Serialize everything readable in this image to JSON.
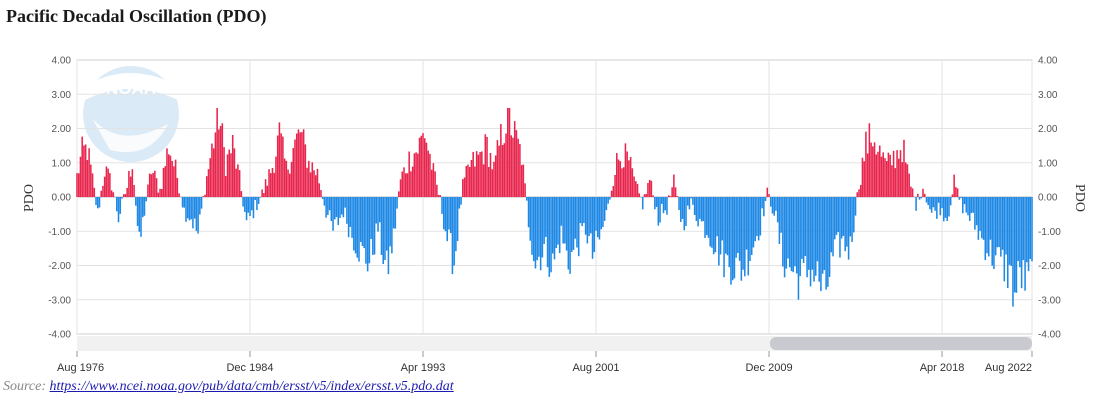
{
  "title": "Pacific Decadal Oscillation (PDO)",
  "source": {
    "prefix": "Source: ",
    "link_text": "https://www.ncei.noaa.gov/pub/data/cmb/ersst/v5/index/ersst.v5.pdo.dat"
  },
  "logo_text": "NOAA",
  "colors": {
    "positive": "#e8254d",
    "negative": "#1e88e5",
    "grid": "#e3e3e3",
    "scrollbar": "#c8cacf"
  },
  "chart_data": {
    "type": "bar",
    "title": "Pacific Decadal Oscillation (PDO)",
    "ylabel_left": "PDO",
    "ylabel_right": "PDO",
    "ylim": [
      -4,
      4
    ],
    "y_ticks": [
      "4.00",
      "3.00",
      "2.00",
      "1.00",
      "0.00",
      "-1.00",
      "-2.00",
      "-3.00",
      "-4.00"
    ],
    "x_start": "1976-08",
    "x_end": "2022-08",
    "x_ticks": [
      "Aug 1976",
      "Dec 1984",
      "Apr 1993",
      "Aug 2001",
      "Dec 2009",
      "Apr 2018",
      "Aug 2022"
    ],
    "grid": true,
    "legend": "none",
    "frequency": "monthly",
    "keyframes": [
      [
        "1976-08",
        0.6
      ],
      [
        "1976-11",
        1.3
      ],
      [
        "1977-02",
        1.4
      ],
      [
        "1977-05",
        0.5
      ],
      [
        "1977-08",
        -0.5
      ],
      [
        "1977-12",
        0.8
      ],
      [
        "1978-04",
        0.4
      ],
      [
        "1978-08",
        -0.6
      ],
      [
        "1979-01",
        0.3
      ],
      [
        "1979-04",
        1.1
      ],
      [
        "1979-08",
        -1.5
      ],
      [
        "1979-11",
        -0.4
      ],
      [
        "1980-03",
        0.8
      ],
      [
        "1980-08",
        0.2
      ],
      [
        "1981-01",
        1.5
      ],
      [
        "1981-06",
        0.6
      ],
      [
        "1981-10",
        -0.4
      ],
      [
        "1982-02",
        -0.6
      ],
      [
        "1982-06",
        -1.1
      ],
      [
        "1982-10",
        0.3
      ],
      [
        "1983-02",
        1.4
      ],
      [
        "1983-06",
        2.4
      ],
      [
        "1983-10",
        1.0
      ],
      [
        "1984-02",
        1.5
      ],
      [
        "1984-06",
        0.5
      ],
      [
        "1984-10",
        -0.8
      ],
      [
        "1985-03",
        -0.3
      ],
      [
        "1985-08",
        0.2
      ],
      [
        "1986-01",
        0.9
      ],
      [
        "1986-05",
        1.8
      ],
      [
        "1986-09",
        0.8
      ],
      [
        "1987-01",
        1.4
      ],
      [
        "1987-05",
        1.9
      ],
      [
        "1987-10",
        1.0
      ],
      [
        "1988-03",
        0.7
      ],
      [
        "1988-08",
        -0.4
      ],
      [
        "1988-12",
        -1.0
      ],
      [
        "1989-06",
        -0.4
      ],
      [
        "1989-11",
        -1.1
      ],
      [
        "1990-04",
        -1.6
      ],
      [
        "1990-09",
        -1.9
      ],
      [
        "1991-02",
        -0.9
      ],
      [
        "1991-07",
        -2.2
      ],
      [
        "1991-11",
        -1.2
      ],
      [
        "1992-03",
        0.5
      ],
      [
        "1992-08",
        1.1
      ],
      [
        "1993-01",
        1.4
      ],
      [
        "1993-05",
        1.9
      ],
      [
        "1993-10",
        0.7
      ],
      [
        "1994-02",
        -0.1
      ],
      [
        "1994-06",
        -1.2
      ],
      [
        "1994-10",
        -1.9
      ],
      [
        "1995-03",
        0.3
      ],
      [
        "1995-07",
        0.9
      ],
      [
        "1996-01",
        1.2
      ],
      [
        "1996-05",
        1.5
      ],
      [
        "1996-09",
        0.8
      ],
      [
        "1997-01",
        1.7
      ],
      [
        "1997-05",
        2.4
      ],
      [
        "1997-09",
        1.8
      ],
      [
        "1998-01",
        1.2
      ],
      [
        "1998-05",
        -0.7
      ],
      [
        "1998-09",
        -1.9
      ],
      [
        "1999-02",
        -1.5
      ],
      [
        "1999-07",
        -2.0
      ],
      [
        "1999-12",
        -1.1
      ],
      [
        "2000-04",
        -1.9
      ],
      [
        "2000-09",
        -1.4
      ],
      [
        "2001-02",
        -0.9
      ],
      [
        "2001-06",
        -1.7
      ],
      [
        "2001-11",
        -1.1
      ],
      [
        "2002-03",
        -0.3
      ],
      [
        "2002-07",
        0.9
      ],
      [
        "2002-11",
        1.3
      ],
      [
        "2003-03",
        1.0
      ],
      [
        "2003-07",
        0.3
      ],
      [
        "2003-11",
        -0.2
      ],
      [
        "2004-03",
        0.5
      ],
      [
        "2004-08",
        -0.6
      ],
      [
        "2005-01",
        -0.3
      ],
      [
        "2005-05",
        0.4
      ],
      [
        "2005-10",
        -0.8
      ],
      [
        "2006-03",
        -0.2
      ],
      [
        "2006-08",
        -0.7
      ],
      [
        "2007-01",
        -1.0
      ],
      [
        "2007-06",
        -1.5
      ],
      [
        "2007-11",
        -1.9
      ],
      [
        "2008-04",
        -2.0
      ],
      [
        "2008-09",
        -2.1
      ],
      [
        "2009-02",
        -1.5
      ],
      [
        "2009-07",
        -0.8
      ],
      [
        "2009-11",
        0.1
      ],
      [
        "2010-03",
        -0.4
      ],
      [
        "2010-08",
        -1.8
      ],
      [
        "2011-01",
        -2.1
      ],
      [
        "2011-06",
        -2.4
      ],
      [
        "2011-11",
        -2.1
      ],
      [
        "2012-04",
        -2.3
      ],
      [
        "2012-08",
        -2.9
      ],
      [
        "2013-01",
        -1.8
      ],
      [
        "2013-06",
        -1.3
      ],
      [
        "2013-11",
        -1.5
      ],
      [
        "2014-04",
        0.4
      ],
      [
        "2014-08",
        1.5
      ],
      [
        "2014-12",
        1.8
      ],
      [
        "2015-04",
        1.3
      ],
      [
        "2015-08",
        0.9
      ],
      [
        "2016-01",
        1.2
      ],
      [
        "2016-05",
        1.5
      ],
      [
        "2016-09",
        0.5
      ],
      [
        "2017-01",
        -0.2
      ],
      [
        "2017-05",
        0.3
      ],
      [
        "2017-10",
        -0.5
      ],
      [
        "2018-03",
        -0.3
      ],
      [
        "2018-07",
        -0.6
      ],
      [
        "2018-11",
        0.4
      ],
      [
        "2019-03",
        -0.2
      ],
      [
        "2019-07",
        -0.5
      ],
      [
        "2019-12",
        -0.9
      ],
      [
        "2020-04",
        -1.3
      ],
      [
        "2020-09",
        -1.7
      ],
      [
        "2021-02",
        -1.9
      ],
      [
        "2021-07",
        -2.2
      ],
      [
        "2021-10",
        -2.9
      ],
      [
        "2022-01",
        -2.2
      ],
      [
        "2022-05",
        -2.5
      ],
      [
        "2022-08",
        -2.2
      ]
    ]
  }
}
